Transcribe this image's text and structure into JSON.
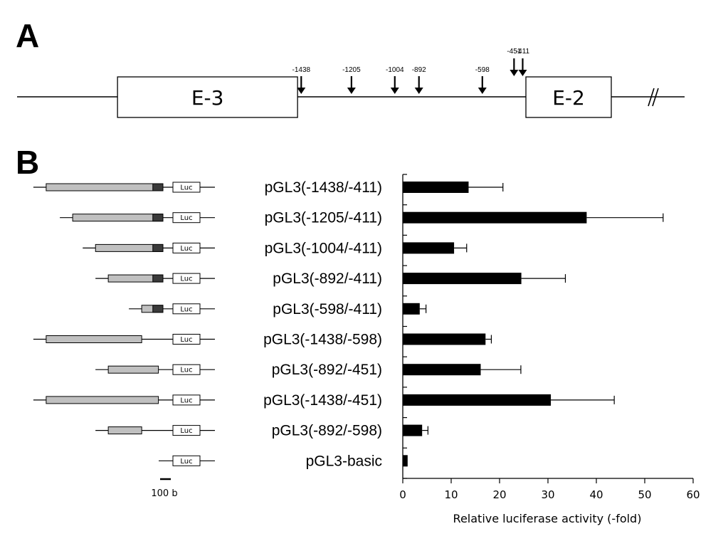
{
  "panel_a": {
    "letter": "A",
    "exons": [
      {
        "label": "E-3",
        "start": -2290,
        "end": -1455
      },
      {
        "label": "E-2",
        "start": -396,
        "end": 0
      }
    ],
    "sites": [
      {
        "label": "-1438",
        "position": -1438
      },
      {
        "label": "-1205",
        "position": -1205
      },
      {
        "label": "-1004",
        "position": -1004
      },
      {
        "label": "-892",
        "position": -892
      },
      {
        "label": "-598",
        "position": -598
      },
      {
        "label": "-451",
        "position": -451
      },
      {
        "label": "-411",
        "position": -411
      }
    ],
    "break_symbol": "//"
  },
  "panel_b": {
    "letter": "B",
    "luc_label": "Luc",
    "scale_bar_label": "100 b",
    "constructs": [
      {
        "label": "pGL3(-1438/-411)",
        "start": -1438,
        "end": -411
      },
      {
        "label": "pGL3(-1205/-411)",
        "start": -1205,
        "end": -411
      },
      {
        "label": "pGL3(-1004/-411)",
        "start": -1004,
        "end": -411
      },
      {
        "label": "pGL3(-892/-411)",
        "start": -892,
        "end": -411
      },
      {
        "label": "pGL3(-598/-411)",
        "start": -598,
        "end": -411
      },
      {
        "label": "pGL3(-1438/-598)",
        "start": -1438,
        "end": -598
      },
      {
        "label": "pGL3(-892/-451)",
        "start": -892,
        "end": -451
      },
      {
        "label": "pGL3(-1438/-451)",
        "start": -1438,
        "end": -451
      },
      {
        "label": "pGL3(-892/-598)",
        "start": -892,
        "end": -598
      },
      {
        "label": "pGL3-basic",
        "start": null,
        "end": null
      }
    ]
  },
  "chart_data": {
    "type": "bar",
    "orientation": "horizontal",
    "categories": [
      "pGL3(-1438/-411)",
      "pGL3(-1205/-411)",
      "pGL3(-1004/-411)",
      "pGL3(-892/-411)",
      "pGL3(-598/-411)",
      "pGL3(-1438/-598)",
      "pGL3(-892/-451)",
      "pGL3(-1438/-451)",
      "pGL3(-892/-598)",
      "pGL3-basic"
    ],
    "values": [
      13.6,
      38.0,
      10.6,
      24.5,
      3.5,
      17.1,
      16.1,
      30.6,
      4.0,
      1.0
    ],
    "errors": [
      7.1,
      15.8,
      2.6,
      9.1,
      1.3,
      1.2,
      8.3,
      13.1,
      1.2,
      0
    ],
    "xlabel": "Relative luciferase activity (-fold)",
    "xlim": [
      0,
      60
    ],
    "xticks": [
      0,
      10,
      20,
      30,
      40,
      50,
      60
    ],
    "bar_color": "#000000",
    "grid": false
  }
}
